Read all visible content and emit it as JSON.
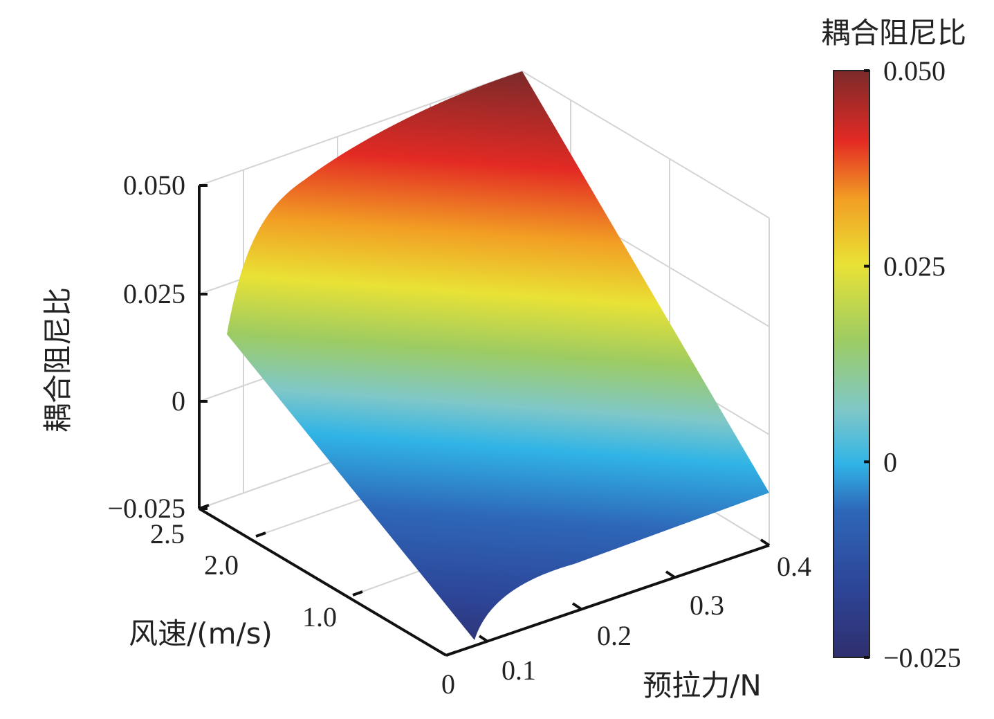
{
  "chart_data": {
    "type": "surface",
    "title": "",
    "xlabel": "预拉力/N",
    "ylabel": "风速/(m/s)",
    "zlabel": "耦合阻尼比",
    "x_ticks": [
      "0.1",
      "0.2",
      "0.3",
      "0.4"
    ],
    "y_ticks": [
      "0",
      "1.0",
      "2.0",
      "2.5"
    ],
    "z_ticks": [
      "−0.025",
      "0",
      "0.025",
      "0.050"
    ],
    "xlim": [
      0.08,
      0.4
    ],
    "ylim": [
      0,
      2.5
    ],
    "zlim": [
      -0.025,
      0.05
    ],
    "corners": {
      "x0.08_y0": -0.0235,
      "x0.4_y0": -0.008,
      "x0.08_y2.5": 0.015,
      "x0.4_y2.5": 0.05
    },
    "grid": true,
    "colorbar": {
      "title": "耦合阻尼比",
      "ticks": [
        "0.050",
        "0.025",
        "0",
        "−0.025"
      ],
      "range": [
        -0.025,
        0.05
      ],
      "colormap": [
        "#2e2f6e",
        "#2d4a9e",
        "#2f6fbf",
        "#2fb5e5",
        "#7fc7c9",
        "#9fcc5a",
        "#e8e033",
        "#f29f24",
        "#e52925",
        "#7a2a2a"
      ]
    }
  }
}
